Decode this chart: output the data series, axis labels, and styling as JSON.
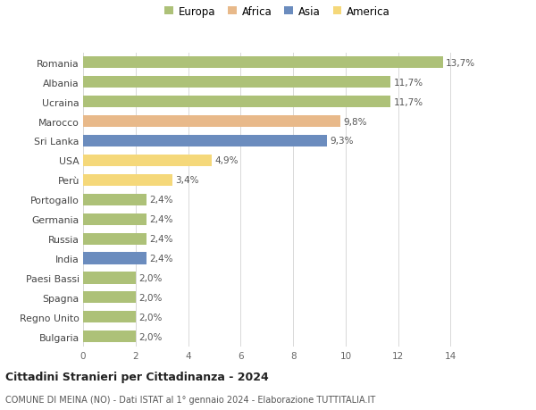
{
  "countries": [
    "Romania",
    "Albania",
    "Ucraina",
    "Marocco",
    "Sri Lanka",
    "USA",
    "Perù",
    "Portogallo",
    "Germania",
    "Russia",
    "India",
    "Paesi Bassi",
    "Spagna",
    "Regno Unito",
    "Bulgaria"
  ],
  "values": [
    13.7,
    11.7,
    11.7,
    9.8,
    9.3,
    4.9,
    3.4,
    2.4,
    2.4,
    2.4,
    2.4,
    2.0,
    2.0,
    2.0,
    2.0
  ],
  "labels": [
    "13,7%",
    "11,7%",
    "11,7%",
    "9,8%",
    "9,3%",
    "4,9%",
    "3,4%",
    "2,4%",
    "2,4%",
    "2,4%",
    "2,4%",
    "2,0%",
    "2,0%",
    "2,0%",
    "2,0%"
  ],
  "colors": [
    "#adc178",
    "#adc178",
    "#adc178",
    "#e8b98a",
    "#6b8cbe",
    "#f5d87a",
    "#f5d87a",
    "#adc178",
    "#adc178",
    "#adc178",
    "#6b8cbe",
    "#adc178",
    "#adc178",
    "#adc178",
    "#adc178"
  ],
  "legend": [
    {
      "label": "Europa",
      "color": "#adc178"
    },
    {
      "label": "Africa",
      "color": "#e8b98a"
    },
    {
      "label": "Asia",
      "color": "#6b8cbe"
    },
    {
      "label": "America",
      "color": "#f5d87a"
    }
  ],
  "xlim": [
    0,
    14.8
  ],
  "xticks": [
    0,
    2,
    4,
    6,
    8,
    10,
    12,
    14
  ],
  "title": "Cittadini Stranieri per Cittadinanza - 2024",
  "subtitle": "COMUNE DI MEINA (NO) - Dati ISTAT al 1° gennaio 2024 - Elaborazione TUTTITALIA.IT",
  "background_color": "#ffffff",
  "grid_color": "#d8d8d8",
  "bar_height": 0.6
}
